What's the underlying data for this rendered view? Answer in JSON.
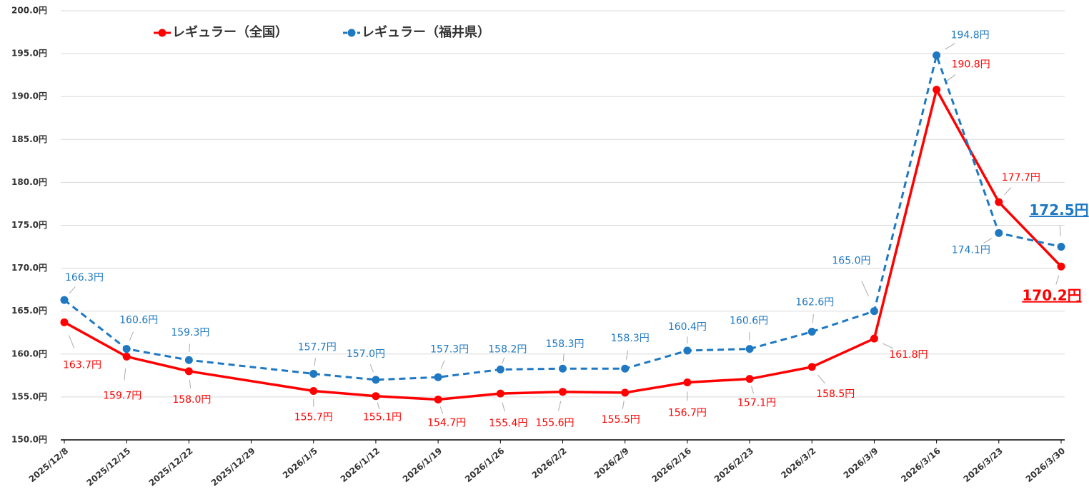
{
  "chart_data": {
    "type": "line",
    "xticks": [
      "2025/12/8",
      "2025/12/15",
      "2025/12/22",
      "2025/12/29",
      "2026/1/5",
      "2026/1/12",
      "2026/1/19",
      "2026/1/26",
      "2026/2/2",
      "2026/2/9",
      "2026/2/16",
      "2026/2/23",
      "2026/3/2",
      "2026/3/9",
      "2026/3/16",
      "2026/3/23",
      "2026/3/30"
    ],
    "xlim": [
      "2025/12/8",
      "2026/3/30"
    ],
    "x": [
      "2025/12/8",
      "2025/12/15",
      "2025/12/22",
      "2026/1/5",
      "2026/1/12",
      "2026/1/19",
      "2026/1/26",
      "2026/2/2",
      "2026/2/9",
      "2026/2/16",
      "2026/2/23",
      "2026/3/2",
      "2026/3/9",
      "2026/3/16",
      "2026/3/23",
      "2026/3/30"
    ],
    "series": [
      {
        "name": "レギュラー（全国）",
        "color": "#ff0000",
        "dashed": false,
        "values": [
          163.7,
          159.7,
          158.0,
          155.7,
          155.1,
          154.7,
          155.4,
          155.6,
          155.5,
          156.7,
          157.1,
          158.5,
          161.8,
          190.8,
          177.7,
          170.2
        ],
        "value_labels": [
          "163.7円",
          "159.7円",
          "158.0円",
          "155.7円",
          "155.1円",
          "154.7円",
          "155.4円",
          "155.6円",
          "155.5円",
          "156.7円",
          "157.1円",
          "158.5円",
          "161.8円",
          "190.8円",
          "177.7円",
          "170.2円"
        ]
      },
      {
        "name": "レギュラー（福井県）",
        "color": "#1e78c2",
        "dashed": true,
        "values": [
          166.3,
          160.6,
          159.3,
          157.7,
          157.0,
          157.3,
          158.2,
          158.3,
          158.3,
          160.4,
          160.6,
          162.6,
          165.0,
          194.8,
          174.1,
          172.5
        ],
        "value_labels": [
          "166.3円",
          "160.6円",
          "159.3円",
          "157.7円",
          "157.0円",
          "157.3円",
          "158.2円",
          "158.3円",
          "158.3円",
          "160.4円",
          "160.6円",
          "162.6円",
          "165.0円",
          "194.8円",
          "174.1円",
          "172.5円"
        ]
      }
    ],
    "ylim": [
      150,
      200
    ],
    "yticks": [
      {
        "value": 150,
        "label": "150.0円"
      },
      {
        "value": 155,
        "label": "155.0円"
      },
      {
        "value": 160,
        "label": "160.0円"
      },
      {
        "value": 165,
        "label": "165.0円"
      },
      {
        "value": 170,
        "label": "170.0円"
      },
      {
        "value": 175,
        "label": "175.0円"
      },
      {
        "value": 180,
        "label": "180.0円"
      },
      {
        "value": 185,
        "label": "185.0円"
      },
      {
        "value": 190,
        "label": "190.0円"
      },
      {
        "value": 195,
        "label": "195.0円"
      },
      {
        "value": 200,
        "label": "200.0円"
      }
    ],
    "grid": true,
    "legend": "top-left"
  }
}
